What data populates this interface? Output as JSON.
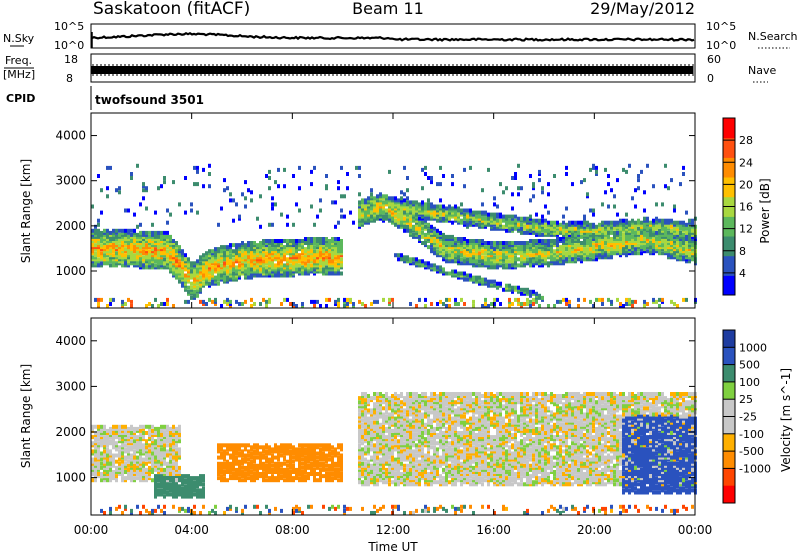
{
  "header": {
    "station": "Saskatoon (fitACF)",
    "beam": "Beam 11",
    "date": "29/May/2012"
  },
  "noise_panel": {
    "left_label": "N.Sky",
    "right_label": "N.Search",
    "tick_top": "10^5",
    "tick_bottom": "10^0"
  },
  "freq_panel": {
    "left_label_1": "Freq.",
    "left_label_2": "[MHz]",
    "right_label": "Nave",
    "left_ticks": [
      "18",
      "8"
    ],
    "right_ticks": [
      "60",
      "0"
    ]
  },
  "cpid_panel": {
    "label": "CPID",
    "text": "twofsound 3501"
  },
  "colors": {
    "power_scale": [
      "#0000ff",
      "#2a52be",
      "#3c8c6e",
      "#5cb85c",
      "#a8d840",
      "#ffc000",
      "#ff8c00",
      "#ff5010",
      "#ff0000"
    ],
    "velocity_scale": [
      "#ff0000",
      "#ff4500",
      "#ff8c00",
      "#ffb000",
      "#c8c8c8",
      "#c8c8c8",
      "#7fd040",
      "#3c8c6e",
      "#2a52be",
      "#1e3ca0"
    ]
  },
  "chart_data": [
    {
      "type": "heatmap",
      "name": "power",
      "title": "",
      "xlabel": "",
      "ylabel": "Slant Range [km]",
      "xlim": [
        0,
        24
      ],
      "ylim": [
        180,
        4500
      ],
      "yticks": [
        1000,
        2000,
        3000,
        4000
      ],
      "colorbar": {
        "label": "Power [dB]",
        "ticks": [
          4,
          8,
          12,
          16,
          20,
          24,
          28
        ],
        "range": [
          0,
          32
        ]
      },
      "bands": [
        {
          "t": [
            0,
            1.5,
            3,
            3.6,
            4,
            4.5,
            6,
            8,
            9.5,
            10
          ],
          "r_center": [
            1450,
            1450,
            1400,
            1000,
            700,
            1000,
            1200,
            1250,
            1300,
            1250
          ],
          "width": 700,
          "power": 22
        },
        {
          "t": [
            10.5,
            11.5,
            12.5,
            14,
            16,
            18,
            20,
            22,
            24
          ],
          "r_center": [
            2200,
            2400,
            2100,
            1450,
            1300,
            1350,
            1500,
            1650,
            1400
          ],
          "width": 500,
          "power": 18
        },
        {
          "t": [
            11,
            13,
            16,
            18,
            20,
            22,
            24
          ],
          "r_center": [
            2500,
            2300,
            2050,
            1900,
            1850,
            1950,
            1850
          ],
          "width": 300,
          "power": 16
        },
        {
          "t": [
            12,
            14,
            16,
            17.5,
            18
          ],
          "r_center": [
            1300,
            950,
            650,
            450,
            350
          ],
          "width": 120,
          "power": 12
        }
      ]
    },
    {
      "type": "heatmap",
      "name": "velocity",
      "title": "",
      "xlabel": "Time UT",
      "ylabel": "Slant Range [km]",
      "xlim": [
        0,
        24
      ],
      "ylim": [
        180,
        4500
      ],
      "yticks": [
        1000,
        2000,
        3000,
        4000
      ],
      "xtick_labels": [
        "00:00",
        "04:00",
        "08:00",
        "12:00",
        "16:00",
        "20:00",
        "00:00"
      ],
      "xticks": [
        0,
        4,
        8,
        12,
        16,
        20,
        24
      ],
      "colorbar": {
        "label": "Velocity [m s^-1]",
        "ticks": [
          "1000",
          "500",
          "100",
          "25",
          "-25",
          "-100",
          "-500",
          "-1000"
        ],
        "values": [
          1000,
          500,
          100,
          25,
          -25,
          -100,
          -500,
          -1000
        ]
      },
      "regions": [
        {
          "t": [
            0,
            3.5
          ],
          "r": [
            900,
            2100
          ],
          "velocity": 0
        },
        {
          "t": [
            2.5,
            4.5
          ],
          "r": [
            500,
            1000
          ],
          "velocity": 250
        },
        {
          "t": [
            5,
            10
          ],
          "r": [
            900,
            1700
          ],
          "velocity": -400
        },
        {
          "t": [
            10.5,
            24
          ],
          "r": [
            800,
            2800
          ],
          "velocity": 0
        },
        {
          "t": [
            21,
            24
          ],
          "r": [
            600,
            2300
          ],
          "velocity": 600
        }
      ]
    }
  ]
}
